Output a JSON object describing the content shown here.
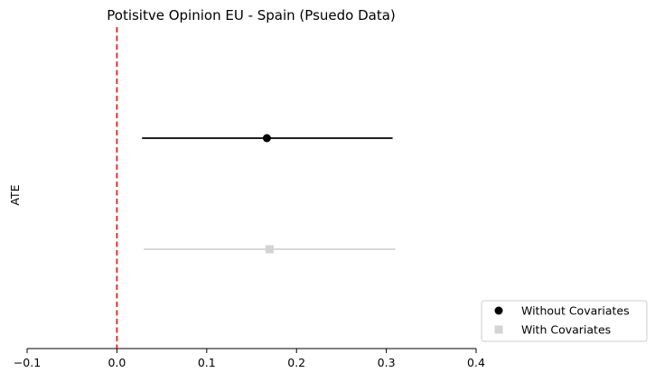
{
  "chart_data": {
    "type": "scatter",
    "title": "Potisitve Opinion EU - Spain (Psuedo Data)",
    "xlabel": "",
    "ylabel": "ATE",
    "xlim": [
      -0.1,
      0.4
    ],
    "xticks": [
      -0.1,
      0.0,
      0.1,
      0.2,
      0.3,
      0.4
    ],
    "xtick_labels": [
      "−0.1",
      "0.0",
      "0.1",
      "0.2",
      "0.3",
      "0.4"
    ],
    "grid": false,
    "legend_position": "bottom-right outside",
    "reference_line": {
      "x": 0,
      "color": "#ff0000",
      "style": "dashed"
    },
    "series": [
      {
        "name": "Without Covariates",
        "estimate": 0.167,
        "ci": [
          0.028,
          0.307
        ],
        "color": "#000000",
        "marker": "circle"
      },
      {
        "name": "With Covariates",
        "estimate": 0.17,
        "ci": [
          0.03,
          0.31
        ],
        "color": "#d3d3d3",
        "marker": "square"
      }
    ]
  }
}
